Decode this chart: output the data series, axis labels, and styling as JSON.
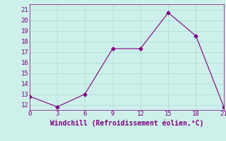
{
  "x": [
    0,
    3,
    6,
    9,
    12,
    15,
    18,
    21
  ],
  "y": [
    12.8,
    11.8,
    13.0,
    17.3,
    17.3,
    20.7,
    18.5,
    11.8
  ],
  "xlim": [
    0,
    21
  ],
  "ylim": [
    11.5,
    21.5
  ],
  "xticks": [
    0,
    3,
    6,
    9,
    12,
    15,
    18,
    21
  ],
  "yticks": [
    12,
    13,
    14,
    15,
    16,
    17,
    18,
    19,
    20,
    21
  ],
  "xlabel": "Windchill (Refroidissement éolien,°C)",
  "line_color": "#800080",
  "marker": "D",
  "marker_size": 2.5,
  "bg_color": "#cdf0ea",
  "grid_color": "#b0ddd8",
  "tick_color": "#800080",
  "label_color": "#800080",
  "xlabel_fontsize": 7,
  "tick_fontsize": 6.5
}
